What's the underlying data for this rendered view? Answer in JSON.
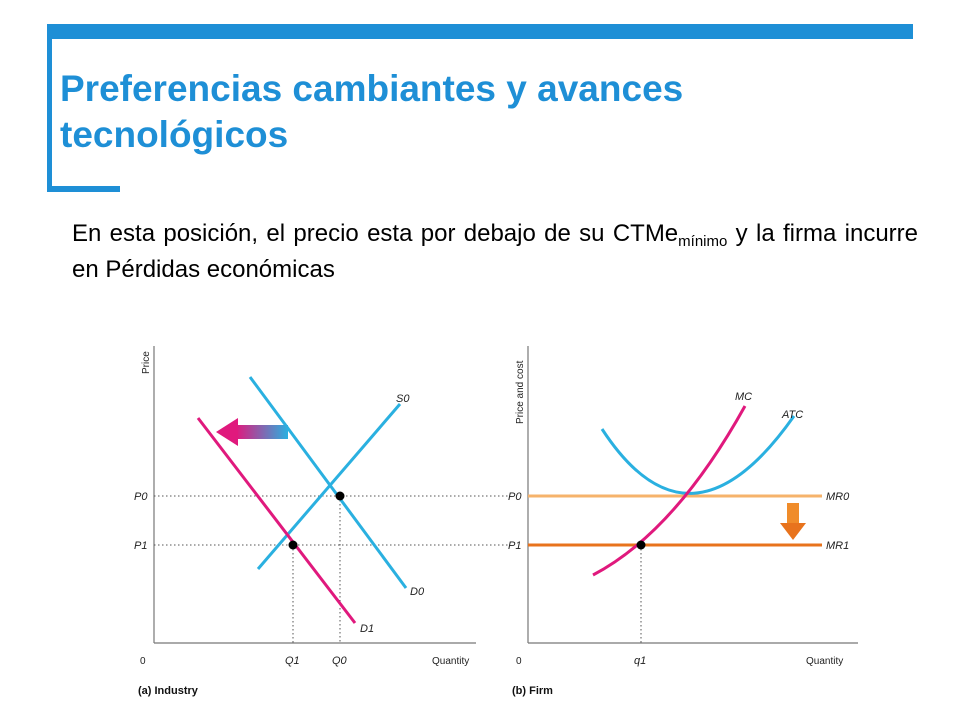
{
  "slide": {
    "title": "Preferencias cambiantes y avances tecnológicos",
    "body_before": "En esta posición, el precio esta por debajo de su CTMe",
    "body_sub": "mínimo",
    "body_after": " y la firma incurre en Pérdidas económicas"
  },
  "colors": {
    "accent": "#1e8fd6",
    "supply_old_demand": "#2ab0e0",
    "new_demand": "#e0197d",
    "mr_old": "#f6b36b",
    "mr_new": "#e8731d",
    "guides": "#555555"
  },
  "industry": {
    "caption": "(a) Industry",
    "y_axis_label": "Price",
    "x_axis_label": "Quantity",
    "origin_label": "0",
    "p0_label": "P0",
    "p1_label": "P1",
    "q0_label": "Q0",
    "q1_label": "Q1",
    "s0_label": "S0",
    "d0_label": "D0",
    "d1_label": "D1",
    "shift_arrow_icon": "left-arrow-icon"
  },
  "firm": {
    "caption": "(b) Firm",
    "y_axis_label": "Price and cost",
    "x_axis_label": "Quantity",
    "origin_label": "0",
    "p0_label": "P0",
    "p1_label": "P1",
    "q1_label": "q1",
    "mc_label": "MC",
    "atc_label": "ATC",
    "mr0_label": "MR0",
    "mr1_label": "MR1",
    "shift_arrow_icon": "down-arrow-icon"
  }
}
